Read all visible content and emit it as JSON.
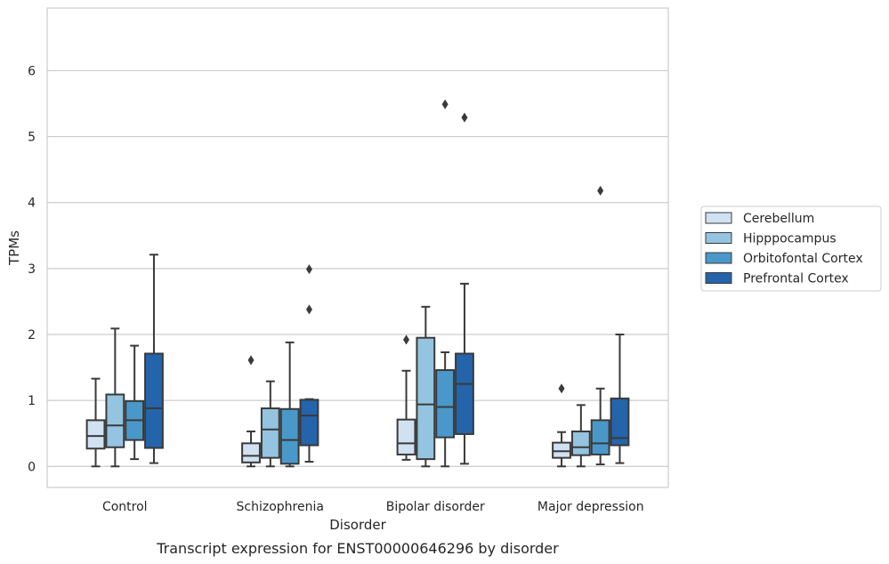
{
  "chart_data": {
    "type": "box",
    "title": "Transcript expression for ENST00000646296 by disorder",
    "xlabel": "Disorder",
    "ylabel": "TPMs",
    "ylim": [
      -0.32,
      6.95
    ],
    "yticks": [
      0,
      1,
      2,
      3,
      4,
      5,
      6
    ],
    "grid": true,
    "legend_position": "right",
    "categories": [
      "Control",
      "Schizophrenia",
      "Bipolar disorder",
      "Major depression"
    ],
    "series": [
      {
        "name": "Cerebellum",
        "color": "#d0e1f2",
        "boxes": [
          {
            "whislo": 0.0,
            "q1": 0.27,
            "med": 0.46,
            "q3": 0.7,
            "whishi": 1.33,
            "fliers": []
          },
          {
            "whislo": 0.0,
            "q1": 0.06,
            "med": 0.16,
            "q3": 0.35,
            "whishi": 0.53,
            "fliers": [
              1.61
            ]
          },
          {
            "whislo": 0.1,
            "q1": 0.18,
            "med": 0.35,
            "q3": 0.71,
            "whishi": 1.45,
            "fliers": [
              1.92
            ]
          },
          {
            "whislo": 0.0,
            "q1": 0.13,
            "med": 0.23,
            "q3": 0.36,
            "whishi": 0.52,
            "fliers": [
              1.18
            ]
          }
        ]
      },
      {
        "name": "Hipppocampus",
        "color": "#94c4df",
        "boxes": [
          {
            "whislo": 0.0,
            "q1": 0.29,
            "med": 0.62,
            "q3": 1.09,
            "whishi": 2.09,
            "fliers": []
          },
          {
            "whislo": 0.0,
            "q1": 0.13,
            "med": 0.56,
            "q3": 0.88,
            "whishi": 1.29,
            "fliers": []
          },
          {
            "whislo": 0.0,
            "q1": 0.11,
            "med": 0.94,
            "q3": 1.95,
            "whishi": 2.42,
            "fliers": []
          },
          {
            "whislo": 0.0,
            "q1": 0.17,
            "med": 0.29,
            "q3": 0.53,
            "whishi": 0.93,
            "fliers": []
          }
        ]
      },
      {
        "name": "Orbitofontal Cortex",
        "color": "#4a98c9",
        "boxes": [
          {
            "whislo": 0.11,
            "q1": 0.4,
            "med": 0.7,
            "q3": 0.99,
            "whishi": 1.83,
            "fliers": []
          },
          {
            "whislo": 0.0,
            "q1": 0.04,
            "med": 0.4,
            "q3": 0.87,
            "whishi": 1.88,
            "fliers": []
          },
          {
            "whislo": 0.0,
            "q1": 0.44,
            "med": 0.9,
            "q3": 1.46,
            "whishi": 1.73,
            "fliers": [
              5.49
            ]
          },
          {
            "whislo": 0.03,
            "q1": 0.18,
            "med": 0.35,
            "q3": 0.7,
            "whishi": 1.18,
            "fliers": [
              4.18
            ]
          }
        ]
      },
      {
        "name": "Prefrontal Cortex",
        "color": "#2464ab",
        "boxes": [
          {
            "whislo": 0.05,
            "q1": 0.28,
            "med": 0.88,
            "q3": 1.71,
            "whishi": 3.21,
            "fliers": []
          },
          {
            "whislo": 0.07,
            "q1": 0.32,
            "med": 0.77,
            "q3": 1.01,
            "whishi": 1.02,
            "fliers": [
              2.38,
              2.99
            ]
          },
          {
            "whislo": 0.04,
            "q1": 0.49,
            "med": 1.25,
            "q3": 1.71,
            "whishi": 2.77,
            "fliers": [
              5.29
            ]
          },
          {
            "whislo": 0.05,
            "q1": 0.32,
            "med": 0.43,
            "q3": 1.03,
            "whishi": 2.0,
            "fliers": []
          }
        ]
      }
    ],
    "extra_fliers_note": ""
  }
}
